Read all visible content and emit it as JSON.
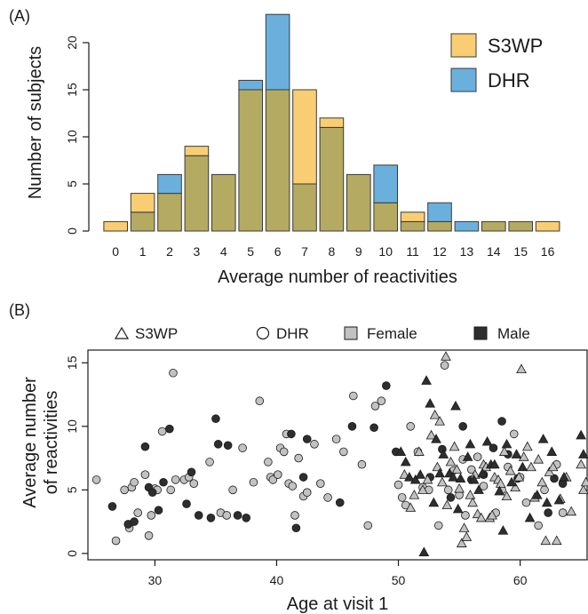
{
  "colors": {
    "s3wp": "#F9CE73",
    "dhr": "#6BB0DD",
    "overlap": "#B5AA61",
    "female": "#C2C2C2",
    "male": "#2E2E2E",
    "bar_stroke": "#3a3a3a",
    "axis": "#1a1a1a"
  },
  "chart_data": [
    {
      "panel": "(A)",
      "type": "bar",
      "overlay": true,
      "xlabel": "Average number of reactivities",
      "ylabel": "Number of subjects",
      "ylim": [
        0,
        23
      ],
      "yticks": [
        0,
        5,
        10,
        15,
        20
      ],
      "categories": [
        "0",
        "1",
        "2",
        "3",
        "4",
        "5",
        "6",
        "7",
        "8",
        "9",
        "10",
        "11",
        "12",
        "13",
        "14",
        "15",
        "16"
      ],
      "series": [
        {
          "name": "S3WP",
          "values": [
            1,
            4,
            4,
            9,
            6,
            15,
            15,
            15,
            12,
            6,
            3,
            2,
            1,
            0,
            1,
            1,
            1
          ]
        },
        {
          "name": "DHR",
          "values": [
            0,
            2,
            6,
            8,
            6,
            16,
            23,
            5,
            11,
            6,
            7,
            1,
            3,
            1,
            1,
            1,
            0
          ]
        }
      ],
      "legend": {
        "position": "top-right",
        "entries": [
          "S3WP",
          "DHR"
        ]
      }
    },
    {
      "panel": "(B)",
      "type": "scatter",
      "xlabel": "Age at visit 1",
      "ylabel_lines": [
        "Average number",
        "of reactivities"
      ],
      "xlim": [
        24.5,
        65.5
      ],
      "ylim": [
        -0.5,
        16
      ],
      "xticks": [
        30,
        40,
        50,
        60
      ],
      "yticks": [
        0,
        5,
        10,
        15
      ],
      "legend": {
        "position": "top",
        "entries": [
          "S3WP",
          "DHR",
          "Female",
          "Male"
        ]
      },
      "series": [
        {
          "shape": "circle",
          "sex": "Female",
          "points": [
            [
              25.2,
              5.8
            ],
            [
              26.8,
              1.0
            ],
            [
              27.5,
              5.0
            ],
            [
              27.9,
              2.0
            ],
            [
              28.1,
              5.2
            ],
            [
              28.3,
              5.6
            ],
            [
              28.6,
              3.2
            ],
            [
              29.2,
              6.2
            ],
            [
              29.5,
              1.4
            ],
            [
              29.7,
              3.0
            ],
            [
              30.0,
              5.1
            ],
            [
              30.2,
              5.0
            ],
            [
              30.6,
              9.6
            ],
            [
              31.5,
              14.2
            ],
            [
              31.3,
              5.0
            ],
            [
              31.7,
              5.8
            ],
            [
              32.4,
              5.8
            ],
            [
              32.8,
              6.0
            ],
            [
              33.2,
              5.5
            ],
            [
              34.5,
              7.2
            ],
            [
              35.4,
              3.2
            ],
            [
              35.9,
              3.0
            ],
            [
              36.4,
              5.0
            ],
            [
              37.2,
              8.3
            ],
            [
              38.1,
              5.6
            ],
            [
              38.6,
              12.0
            ],
            [
              39.3,
              7.2
            ],
            [
              39.5,
              6.0
            ],
            [
              39.7,
              5.8
            ],
            [
              40.1,
              6.2
            ],
            [
              40.3,
              8.3
            ],
            [
              40.6,
              8.0
            ],
            [
              40.8,
              9.4
            ],
            [
              41.0,
              5.5
            ],
            [
              41.3,
              5.3
            ],
            [
              41.5,
              3.0
            ],
            [
              41.8,
              7.5
            ],
            [
              42.2,
              4.5
            ],
            [
              42.5,
              4.8
            ],
            [
              43.1,
              8.6
            ],
            [
              43.6,
              5.5
            ],
            [
              44.2,
              4.4
            ],
            [
              44.9,
              9.0
            ],
            [
              45.5,
              8.0
            ],
            [
              46.3,
              12.4
            ],
            [
              47.0,
              7.0
            ],
            [
              47.5,
              2.2
            ],
            [
              48.1,
              11.6
            ],
            [
              48.6,
              12.0
            ],
            [
              50.0,
              5.4
            ],
            [
              50.3,
              4.4
            ],
            [
              50.6,
              3.8
            ],
            [
              51.0,
              10.0
            ],
            [
              51.6,
              8.0
            ],
            [
              52.0,
              5.2
            ],
            [
              52.5,
              5.0
            ],
            [
              53.3,
              2.2
            ],
            [
              53.8,
              14.8
            ],
            [
              54.1,
              5.0
            ],
            [
              54.5,
              6.5
            ],
            [
              55.0,
              4.6
            ],
            [
              55.3,
              7.4
            ],
            [
              55.5,
              3.0
            ],
            [
              56.0,
              6.6
            ],
            [
              56.5,
              7.6
            ],
            [
              57.0,
              5.3
            ],
            [
              58.0,
              3.2
            ],
            [
              58.5,
              5.0
            ],
            [
              59.0,
              6.8
            ],
            [
              59.5,
              9.4
            ],
            [
              60.0,
              6.0
            ],
            [
              60.5,
              4.0
            ],
            [
              61.5,
              2.2
            ],
            [
              62.0,
              5.0
            ],
            [
              63.0,
              7.0
            ],
            [
              63.5,
              3.2
            ]
          ]
        },
        {
          "shape": "circle",
          "sex": "Male",
          "points": [
            [
              26.5,
              3.7
            ],
            [
              27.8,
              2.3
            ],
            [
              28.3,
              2.5
            ],
            [
              29.2,
              8.4
            ],
            [
              29.5,
              5.2
            ],
            [
              29.8,
              4.8
            ],
            [
              30.3,
              3.4
            ],
            [
              30.7,
              5.6
            ],
            [
              31.2,
              9.8
            ],
            [
              32.6,
              3.9
            ],
            [
              33.0,
              6.4
            ],
            [
              33.6,
              3.0
            ],
            [
              34.6,
              2.8
            ],
            [
              35.0,
              10.6
            ],
            [
              35.2,
              8.6
            ],
            [
              36.0,
              8.5
            ],
            [
              36.8,
              3.0
            ],
            [
              37.5,
              2.8
            ],
            [
              41.2,
              9.4
            ],
            [
              41.6,
              2.0
            ],
            [
              42.2,
              6.0
            ],
            [
              42.5,
              9.0
            ],
            [
              45.2,
              4.0
            ],
            [
              46.2,
              10.0
            ],
            [
              48.0,
              9.9
            ],
            [
              49.0,
              13.2
            ],
            [
              49.8,
              8.0
            ],
            [
              52.6,
              6.0
            ],
            [
              53.6,
              8.2
            ],
            [
              54.3,
              4.4
            ],
            [
              55.3,
              10.0
            ],
            [
              56.0,
              5.8
            ],
            [
              57.0,
              6.2
            ],
            [
              57.8,
              8.3
            ],
            [
              58.5,
              10.4
            ],
            [
              59.0,
              7.8
            ],
            [
              59.8,
              5.9
            ],
            [
              62.3,
              3.2
            ],
            [
              62.8,
              5.9
            ],
            [
              63.5,
              5.5
            ]
          ]
        },
        {
          "shape": "triangle",
          "sex": "Female",
          "points": [
            [
              50.5,
              6.2
            ],
            [
              51.0,
              3.6
            ],
            [
              51.3,
              4.6
            ],
            [
              51.7,
              8.0
            ],
            [
              52.0,
              5.0
            ],
            [
              52.4,
              5.8
            ],
            [
              52.7,
              9.3
            ],
            [
              53.0,
              10.9
            ],
            [
              53.2,
              6.8
            ],
            [
              53.4,
              10.4
            ],
            [
              53.6,
              5.6
            ],
            [
              53.9,
              15.5
            ],
            [
              54.0,
              3.8
            ],
            [
              54.3,
              7.2
            ],
            [
              54.6,
              8.4
            ],
            [
              54.8,
              6.6
            ],
            [
              55.0,
              5.1
            ],
            [
              55.2,
              0.8
            ],
            [
              55.4,
              2.0
            ],
            [
              55.6,
              1.3
            ],
            [
              55.9,
              4.6
            ],
            [
              56.1,
              4.0
            ],
            [
              56.3,
              6.2
            ],
            [
              56.5,
              3.1
            ],
            [
              56.8,
              2.8
            ],
            [
              57.0,
              7.0
            ],
            [
              57.2,
              6.8
            ],
            [
              57.5,
              2.8
            ],
            [
              57.7,
              3.0
            ],
            [
              57.9,
              6.0
            ],
            [
              58.2,
              5.8
            ],
            [
              58.4,
              5.5
            ],
            [
              58.7,
              8.0
            ],
            [
              58.9,
              4.5
            ],
            [
              59.2,
              6.5
            ],
            [
              59.6,
              5.2
            ],
            [
              59.9,
              6.0
            ],
            [
              60.1,
              14.5
            ],
            [
              60.3,
              7.6
            ],
            [
              60.6,
              8.4
            ],
            [
              60.9,
              6.8
            ],
            [
              61.2,
              4.4
            ],
            [
              61.5,
              7.4
            ],
            [
              61.8,
              5.6
            ],
            [
              62.1,
              1.0
            ],
            [
              62.4,
              6.4
            ],
            [
              62.7,
              6.8
            ],
            [
              63.0,
              1.0
            ],
            [
              63.3,
              4.3
            ],
            [
              63.8,
              6.0
            ],
            [
              64.2,
              3.3
            ],
            [
              65.0,
              7.0
            ],
            [
              65.2,
              5.0
            ],
            [
              65.4,
              5.6
            ]
          ]
        },
        {
          "shape": "triangle",
          "sex": "Male",
          "points": [
            [
              50.2,
              8.0
            ],
            [
              50.6,
              7.2
            ],
            [
              50.9,
              6.0
            ],
            [
              51.4,
              5.8
            ],
            [
              51.8,
              6.2
            ],
            [
              52.1,
              0.1
            ],
            [
              52.3,
              13.6
            ],
            [
              52.6,
              11.8
            ],
            [
              52.9,
              4.0
            ],
            [
              53.1,
              9.0
            ],
            [
              53.4,
              6.3
            ],
            [
              53.7,
              7.8
            ],
            [
              54.2,
              6.3
            ],
            [
              54.5,
              6.0
            ],
            [
              54.7,
              11.6
            ],
            [
              54.9,
              3.5
            ],
            [
              55.1,
              5.9
            ],
            [
              55.7,
              7.6
            ],
            [
              55.9,
              8.6
            ],
            [
              56.2,
              5.8
            ],
            [
              56.6,
              5.0
            ],
            [
              56.9,
              6.3
            ],
            [
              57.3,
              8.8
            ],
            [
              57.6,
              7.0
            ],
            [
              57.9,
              7.0
            ],
            [
              58.3,
              4.9
            ],
            [
              58.6,
              1.8
            ],
            [
              58.9,
              8.6
            ],
            [
              59.3,
              5.6
            ],
            [
              59.7,
              7.8
            ],
            [
              60.2,
              6.8
            ],
            [
              60.8,
              2.8
            ],
            [
              61.4,
              4.6
            ],
            [
              61.9,
              9.0
            ],
            [
              62.2,
              4.0
            ],
            [
              62.6,
              8.0
            ],
            [
              63.2,
              4.2
            ],
            [
              63.6,
              6.0
            ],
            [
              65.0,
              9.3
            ],
            [
              65.2,
              7.8
            ]
          ]
        }
      ]
    }
  ]
}
